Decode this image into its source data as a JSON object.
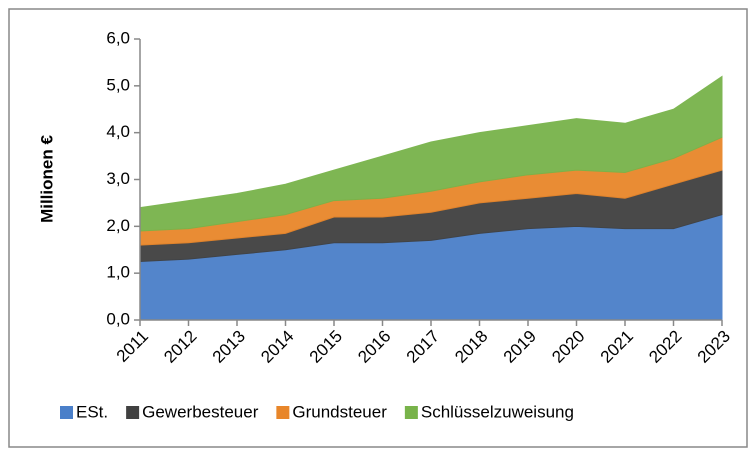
{
  "chart_data": {
    "type": "stacked_area",
    "y_label": "Millionen €",
    "categories": [
      "2011",
      "2012",
      "2013",
      "2014",
      "2015",
      "2016",
      "2017",
      "2018",
      "2019",
      "2020",
      "2021",
      "2022",
      "2023"
    ],
    "series": [
      {
        "name": "ESt.",
        "color": "#4a7fc9",
        "values": [
          1.25,
          1.3,
          1.4,
          1.5,
          1.65,
          1.65,
          1.7,
          1.85,
          1.95,
          2.0,
          1.95,
          1.95,
          2.25
        ]
      },
      {
        "name": "Gewerbesteuer",
        "color": "#404040",
        "values": [
          0.35,
          0.35,
          0.35,
          0.35,
          0.55,
          0.55,
          0.6,
          0.65,
          0.65,
          0.7,
          0.65,
          0.95,
          0.95
        ]
      },
      {
        "name": "Grundsteuer",
        "color": "#e8862a",
        "values": [
          0.3,
          0.3,
          0.35,
          0.4,
          0.35,
          0.4,
          0.45,
          0.45,
          0.5,
          0.5,
          0.55,
          0.55,
          0.7
        ]
      },
      {
        "name": "Schlüsselzuweisung",
        "color": "#78b34a",
        "values": [
          0.5,
          0.6,
          0.6,
          0.65,
          0.65,
          0.9,
          1.05,
          1.05,
          1.05,
          1.1,
          1.05,
          1.05,
          1.3
        ]
      }
    ],
    "ylim": [
      0,
      6
    ],
    "yticks": [
      {
        "value": 0,
        "label": "0,0"
      },
      {
        "value": 1,
        "label": "1,0"
      },
      {
        "value": 2,
        "label": "2,0"
      },
      {
        "value": 3,
        "label": "3,0"
      },
      {
        "value": 4,
        "label": "4,0"
      },
      {
        "value": 5,
        "label": "5,0"
      },
      {
        "value": 6,
        "label": "6,0"
      }
    ],
    "legend": "bottom"
  }
}
